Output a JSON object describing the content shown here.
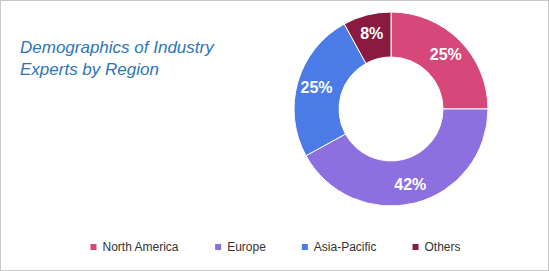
{
  "chart_data": {
    "type": "pie",
    "title": "Demographics of Industry Experts by Region",
    "categories": [
      "North America",
      "Europe",
      "Asia-Pacific",
      "Others"
    ],
    "values": [
      25,
      42,
      25,
      8
    ],
    "value_labels": [
      "25%",
      "42%",
      "25%",
      "8%"
    ],
    "colors": [
      "#d6477a",
      "#8e6fe0",
      "#4a7be6",
      "#8b1a40"
    ],
    "data_labels": true,
    "legend": "bottom"
  }
}
